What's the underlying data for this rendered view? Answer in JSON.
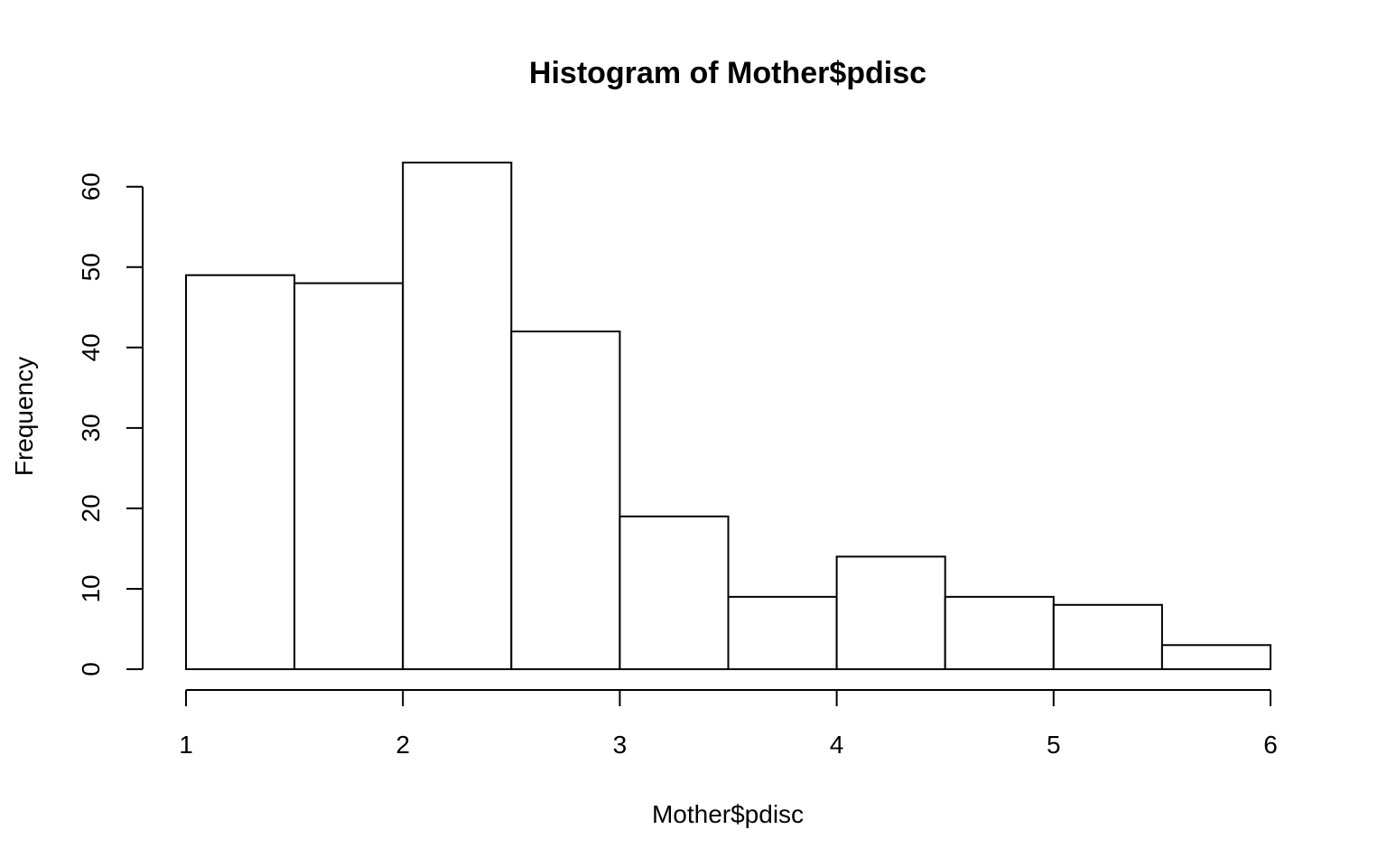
{
  "chart_data": {
    "type": "bar",
    "title": "Histogram of Mother$pdisc",
    "xlabel": "Mother$pdisc",
    "ylabel": "Frequency",
    "bin_edges": [
      1,
      1.5,
      2,
      2.5,
      3,
      3.5,
      4,
      4.5,
      5,
      5.5,
      6
    ],
    "values": [
      49,
      48,
      63,
      42,
      19,
      9,
      14,
      9,
      8,
      3
    ],
    "xlim": [
      1,
      6
    ],
    "ylim": [
      0,
      63
    ],
    "x_ticks": [
      1,
      2,
      3,
      4,
      5,
      6
    ],
    "y_ticks": [
      0,
      10,
      20,
      30,
      40,
      50,
      60
    ],
    "grid": false,
    "colors": {
      "bar_fill": "#ffffff",
      "bar_stroke": "#000000"
    }
  }
}
